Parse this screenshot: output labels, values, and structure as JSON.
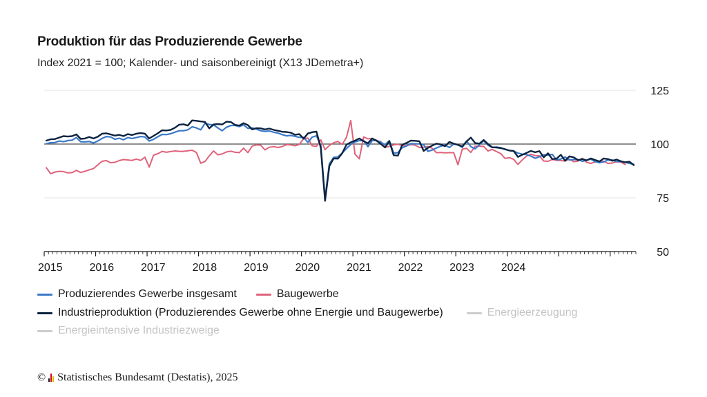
{
  "header": {
    "title": "Produktion für das Produzierende Gewerbe",
    "subtitle": "Index 2021 = 100; Kalender- und saisonbereinigt (X13 JDemetra+)"
  },
  "legend": {
    "items": [
      {
        "label": "Produzierendes Gewerbe insgesamt",
        "color": "#3a78c9",
        "active": true
      },
      {
        "label": "Baugewerbe",
        "color": "#e0627a",
        "active": true
      },
      {
        "label": "Industrieproduktion (Produzierendes Gewerbe ohne Energie und Baugewerbe)",
        "color": "#0c2340",
        "active": true
      },
      {
        "label": "Energieerzeugung",
        "color": "#cccccc",
        "active": false
      },
      {
        "label": "Energieintensive Industriezweige",
        "color": "#cccccc",
        "active": false
      }
    ]
  },
  "credit": {
    "copyright_symbol": "©",
    "text": "Statistisches Bundesamt (Destatis), 2025"
  },
  "chart_data": {
    "type": "line",
    "ylim": [
      50,
      125
    ],
    "yticks": [
      125,
      100,
      75,
      50
    ],
    "reference_line": 100,
    "xticks": [
      "2015",
      "2016",
      "2017",
      "2018",
      "2019",
      "2020",
      "2021",
      "2022",
      "2023",
      "2024"
    ],
    "x_start": "2015-01",
    "x_end": "2024-12",
    "frequency": "monthly",
    "grid": true,
    "series": [
      {
        "name": "Produzierendes Gewerbe insgesamt",
        "color": "#3a78c9",
        "values": [
          100.2,
          100.6,
          100.7,
          101.4,
          101.1,
          101.6,
          101.8,
          103.0,
          101.1,
          101.0,
          101.2,
          100.5,
          101.4,
          102.6,
          103.5,
          103.3,
          102.2,
          102.7,
          102.0,
          103.0,
          102.6,
          103.0,
          103.5,
          103.3,
          101.4,
          102.2,
          103.4,
          104.5,
          104.4,
          104.8,
          105.5,
          106.2,
          106.2,
          106.6,
          108.0,
          107.5,
          106.6,
          109.6,
          109.1,
          108.9,
          107.5,
          106.2,
          107.8,
          108.6,
          108.7,
          108.1,
          108.9,
          107.3,
          107.5,
          107.0,
          106.2,
          105.9,
          106.1,
          105.5,
          105.1,
          104.4,
          103.8,
          104.0,
          103.6,
          103.1,
          103.1,
          100.8,
          103.2,
          103.8,
          99.5,
          74.8,
          90.8,
          93.8,
          94.0,
          95.8,
          97.9,
          99.8,
          101.0,
          101.6,
          101.6,
          98.8,
          101.6,
          101.7,
          100.8,
          99.7,
          101.6,
          95.8,
          96.0,
          98.3,
          99.1,
          100.2,
          100.1,
          100.1,
          99.7,
          96.6,
          97.2,
          98.2,
          99.0,
          99.5,
          98.4,
          100.0,
          99.7,
          98.4,
          101.4,
          98.8,
          97.8,
          99.6,
          101.5,
          99.5,
          98.4,
          98.6,
          98.3,
          97.5,
          97.0,
          96.7,
          95.8,
          95.3,
          95.1,
          94.4,
          93.4,
          94.1,
          95.0,
          94.9,
          95.2,
          92.6,
          93.0,
          94.0,
          92.6,
          92.8,
          92.8,
          92.0,
          92.5,
          93.0,
          91.8,
          91.3,
          91.7,
          92.6,
          92.6,
          91.8,
          92.0,
          91.5,
          91.0,
          90.6
        ]
      },
      {
        "name": "Baugewerbe",
        "color": "#e0627a",
        "values": [
          89.0,
          86.2,
          87.0,
          87.3,
          87.2,
          86.6,
          86.7,
          87.8,
          86.8,
          87.3,
          88.0,
          88.6,
          90.3,
          92.0,
          92.3,
          91.3,
          91.5,
          92.3,
          92.8,
          92.6,
          92.4,
          93.0,
          92.4,
          93.9,
          89.3,
          94.8,
          95.5,
          96.6,
          96.2,
          96.5,
          96.8,
          96.6,
          96.6,
          96.9,
          97.1,
          96.1,
          91.1,
          91.9,
          94.5,
          96.8,
          95.0,
          95.4,
          96.3,
          96.7,
          96.2,
          96.0,
          98.1,
          96.0,
          99.0,
          99.6,
          99.5,
          97.3,
          98.5,
          98.8,
          98.4,
          98.8,
          99.7,
          99.6,
          99.2,
          99.8,
          102.5,
          102.8,
          99.2,
          98.9,
          102.0,
          97.4,
          99.3,
          100.6,
          101.2,
          99.8,
          103.1,
          110.9,
          95.3,
          93.1,
          103.3,
          102.4,
          102.6,
          101.4,
          101.2,
          98.5,
          98.9,
          99.6,
          99.9,
          99.3,
          99.3,
          99.7,
          99.5,
          98.4,
          98.5,
          98.9,
          98.0,
          96.0,
          96.1,
          95.9,
          96.0,
          96.0,
          90.4,
          97.6,
          98.0,
          96.1,
          99.0,
          99.0,
          98.9,
          96.8,
          97.5,
          96.5,
          95.5,
          93.3,
          93.7,
          92.9,
          90.5,
          92.6,
          94.4,
          95.3,
          94.6,
          94.5,
          92.1,
          92.0,
          92.8,
          92.4,
          92.3,
          92.1,
          93.0,
          91.8,
          92.1,
          93.4,
          91.5,
          91.0,
          91.7,
          92.0,
          92.0,
          91.0,
          91.2,
          91.8,
          91.6,
          90.5
        ]
      },
      {
        "name": "Industrieproduktion (Produzierendes Gewerbe ohne Energie und Baugewerbe)",
        "color": "#0c2340",
        "values": [
          101.6,
          102.2,
          102.3,
          103.0,
          103.7,
          103.5,
          103.7,
          104.5,
          102.4,
          102.6,
          103.3,
          102.6,
          103.4,
          104.8,
          105.0,
          104.5,
          103.9,
          104.3,
          103.7,
          104.6,
          104.2,
          104.8,
          105.1,
          104.8,
          102.6,
          103.8,
          105.0,
          106.4,
          106.3,
          106.6,
          107.6,
          109.0,
          109.2,
          108.6,
          111.0,
          110.8,
          110.5,
          110.3,
          107.3,
          109.1,
          109.3,
          109.1,
          110.4,
          110.3,
          108.9,
          108.6,
          109.7,
          108.8,
          106.8,
          107.4,
          107.3,
          106.8,
          107.2,
          106.6,
          106.2,
          105.7,
          105.6,
          105.3,
          104.3,
          104.6,
          102.5,
          104.9,
          105.5,
          105.8,
          98.3,
          73.6,
          89.7,
          93.3,
          93.2,
          95.7,
          99.7,
          100.8,
          101.6,
          102.6,
          101.3,
          100.4,
          102.6,
          101.6,
          100.0,
          98.4,
          101.3,
          94.8,
          94.6,
          99.6,
          100.5,
          101.6,
          101.5,
          101.3,
          96.8,
          98.2,
          99.3,
          100.2,
          99.8,
          99.0,
          101.0,
          100.2,
          99.6,
          98.9,
          101.2,
          103.0,
          100.5,
          100.2,
          101.9,
          100.0,
          98.5,
          98.4,
          98.1,
          97.6,
          97.0,
          96.8,
          94.0,
          95.0,
          95.9,
          96.8,
          96.2,
          96.7,
          93.8,
          95.7,
          93.0,
          93.2,
          95.0,
          92.2,
          94.3,
          93.8,
          92.5,
          93.0,
          92.4,
          93.3,
          92.6,
          91.9,
          93.3,
          93.0,
          92.2,
          92.8,
          92.0,
          91.5,
          91.8,
          90.2
        ]
      }
    ]
  }
}
